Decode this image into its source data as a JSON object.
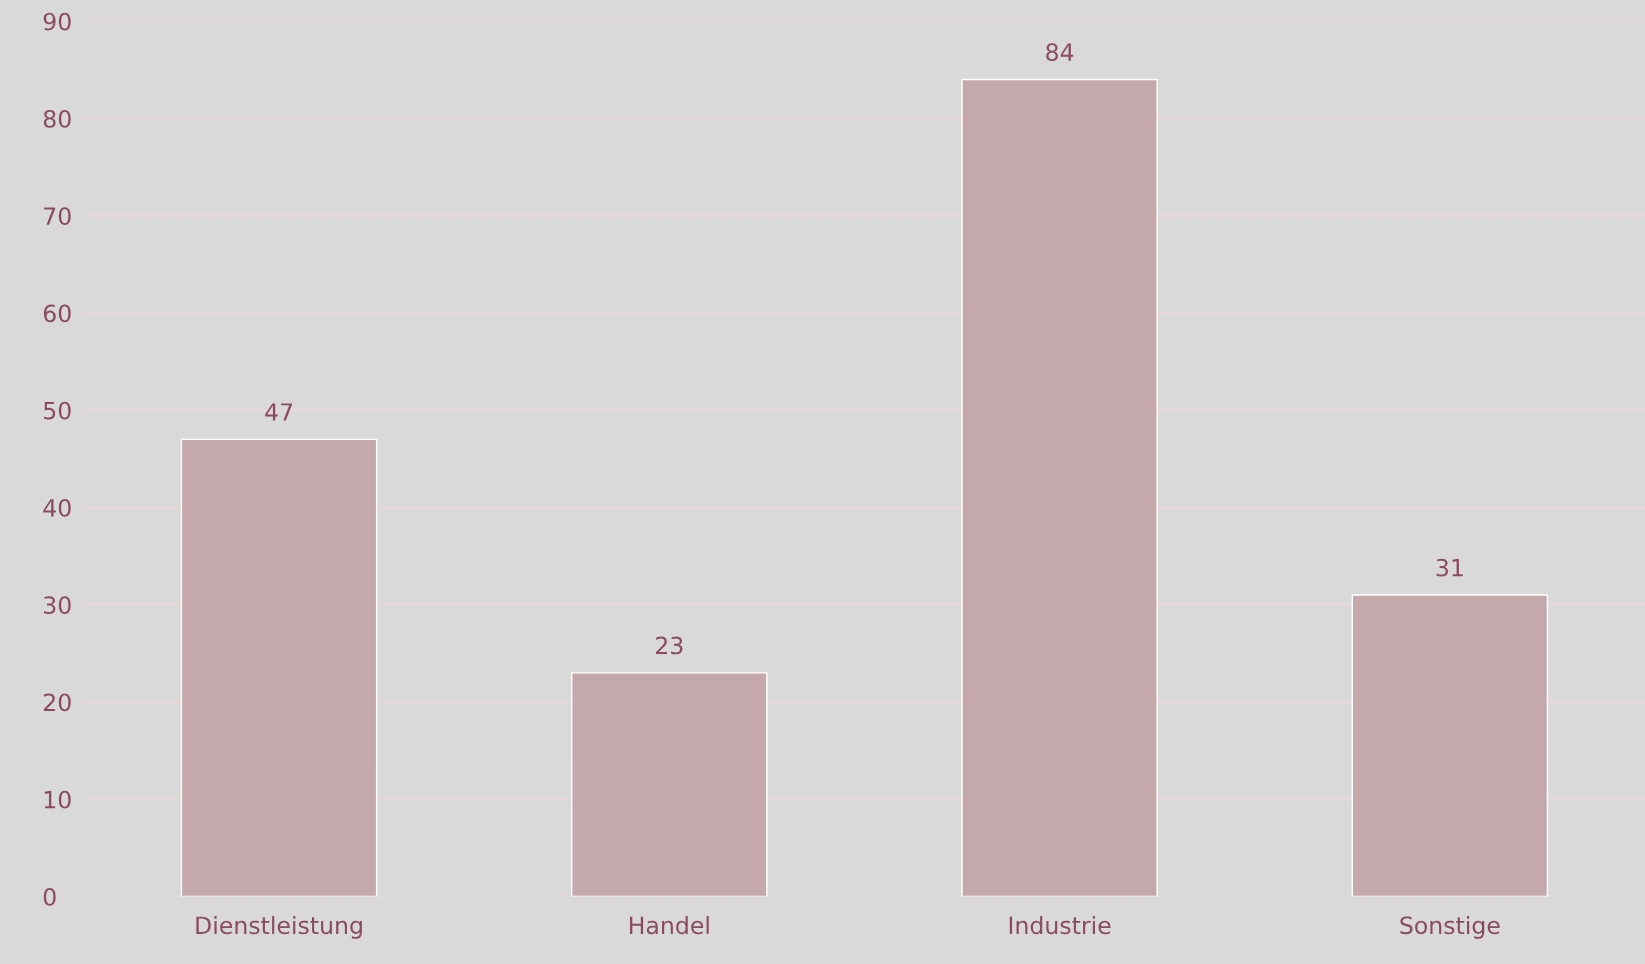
{
  "chart_data": {
    "type": "bar",
    "categories": [
      "Dienstleistung",
      "Handel",
      "Industrie",
      "Sonstige"
    ],
    "values": [
      47,
      23,
      84,
      31
    ],
    "color": "#c5a8ab",
    "ylim": [
      0,
      90
    ],
    "yticks": [
      0,
      10,
      20,
      30,
      40,
      50,
      60,
      70,
      80,
      90
    ],
    "grid": "y",
    "data_labels": true
  }
}
